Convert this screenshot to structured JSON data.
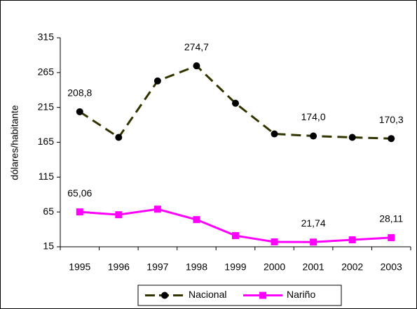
{
  "chart_data": {
    "type": "line",
    "y_label": "dólares/habitante",
    "categories": [
      "1995",
      "1996",
      "1997",
      "1998",
      "1999",
      "2000",
      "2001",
      "2002",
      "2003"
    ],
    "ylim": [
      15,
      315
    ],
    "yticks": [
      15,
      65,
      115,
      165,
      215,
      265,
      315
    ],
    "legend": "bottom",
    "series": [
      {
        "name": "Nacional",
        "color": "#333300",
        "marker_color": "#000000",
        "marker": "circle",
        "dashed": true,
        "values": [
          208.8,
          172,
          253,
          274.7,
          221,
          177,
          174.0,
          172,
          170.3
        ],
        "value_labels": [
          "208,8",
          null,
          null,
          "274,7",
          null,
          null,
          "174,0",
          null,
          "170,3"
        ]
      },
      {
        "name": "Nariño",
        "color": "#ff00ff",
        "marker_color": "#ff00ff",
        "marker": "square",
        "dashed": false,
        "values": [
          65.06,
          61,
          69,
          54,
          31,
          22,
          21.74,
          25,
          28.11
        ],
        "value_labels": [
          "65,06",
          null,
          null,
          null,
          null,
          null,
          "21,74",
          null,
          "28,11"
        ]
      }
    ]
  }
}
